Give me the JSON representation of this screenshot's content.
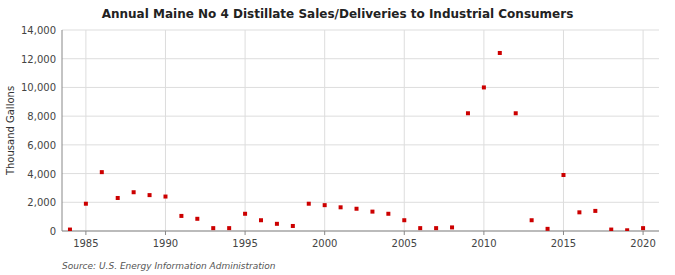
{
  "chart_data": {
    "type": "scatter",
    "title": "Annual Maine No 4 Distillate Sales/Deliveries to Industrial Consumers",
    "y_label": "Thousand Gallons",
    "annotations": [
      "Source: U.S. Energy Information Administration"
    ],
    "x": [
      1984,
      1985,
      1986,
      1987,
      1988,
      1989,
      1990,
      1991,
      1992,
      1993,
      1994,
      1995,
      1996,
      1997,
      1998,
      1999,
      2000,
      2001,
      2002,
      2003,
      2004,
      2005,
      2006,
      2007,
      2008,
      2009,
      2010,
      2011,
      2012,
      2013,
      2014,
      2015,
      2016,
      2017,
      2018,
      2019,
      2020
    ],
    "values": [
      100,
      1900,
      4100,
      2300,
      2700,
      2500,
      2400,
      1050,
      850,
      200,
      200,
      1200,
      750,
      500,
      350,
      1900,
      1800,
      1650,
      1550,
      1350,
      1200,
      750,
      200,
      200,
      250,
      8200,
      10000,
      12400,
      8200,
      750,
      150,
      3900,
      1300,
      1400,
      100,
      50,
      200
    ],
    "color": "#cc0000",
    "marker": "square",
    "xlim": [
      1983.5,
      2021
    ],
    "ylim": [
      0,
      14000
    ],
    "xticks": [
      1985,
      1990,
      1995,
      2000,
      2005,
      2010,
      2015,
      2020
    ],
    "yticks": [
      0,
      {
        "value": 2000,
        "label": "2,000"
      },
      {
        "value": 4000,
        "label": "4,000"
      },
      {
        "value": 6000,
        "label": "6,000"
      },
      {
        "value": 8000,
        "label": "8,000"
      },
      {
        "value": 10000,
        "label": "10,000"
      },
      {
        "value": 12000,
        "label": "12,000"
      },
      {
        "value": 14000,
        "label": "14,000"
      }
    ],
    "grid": true
  }
}
